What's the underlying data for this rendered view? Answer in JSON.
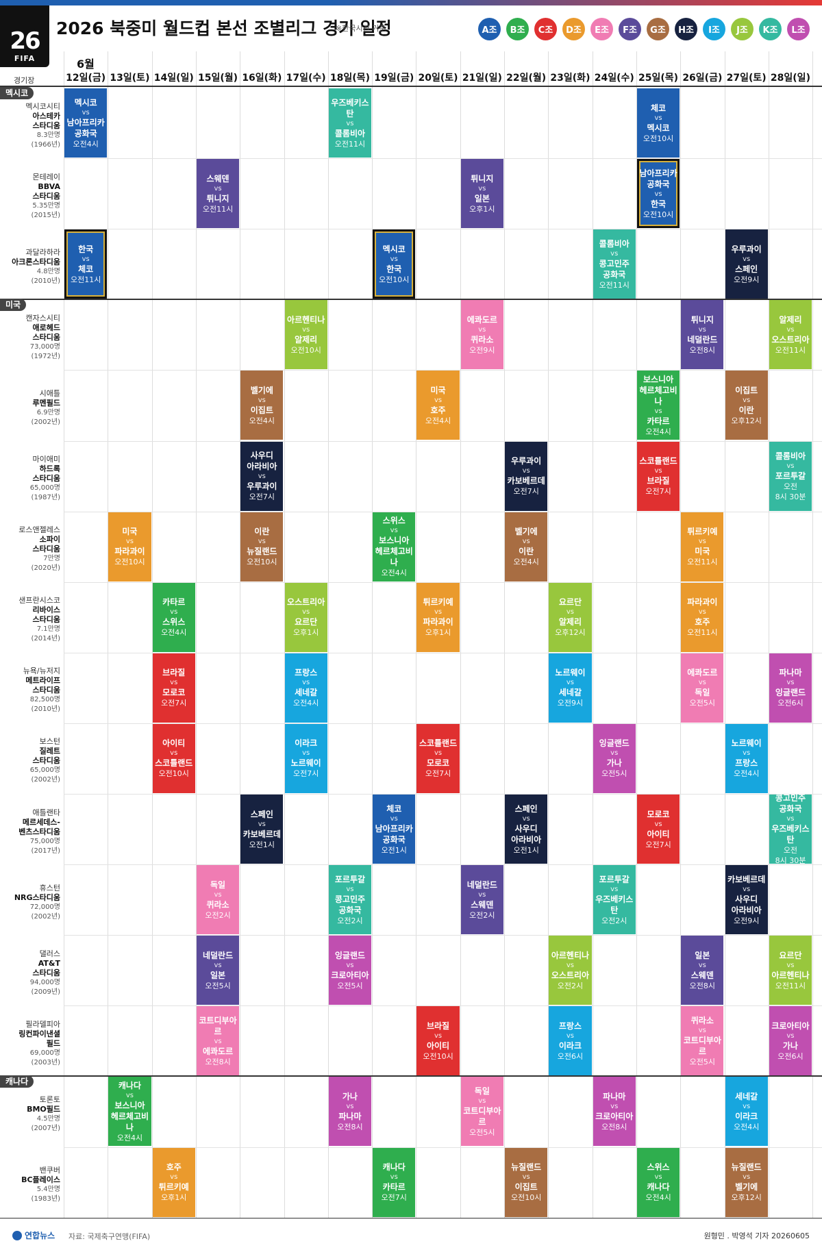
{
  "header": {
    "logo_year": "26",
    "logo_text": "FIFA",
    "title": "2026 북중미 월드컵 본선 조별리그 경기 일정",
    "subtitle": "※한국시간 기준"
  },
  "groups": [
    {
      "label": "A조",
      "color": "#1f5fb0"
    },
    {
      "label": "B조",
      "color": "#2fae4e"
    },
    {
      "label": "C조",
      "color": "#e03030"
    },
    {
      "label": "D조",
      "color": "#ea9a2d"
    },
    {
      "label": "E조",
      "color": "#f07cb3"
    },
    {
      "label": "F조",
      "color": "#5b4b9a"
    },
    {
      "label": "G조",
      "color": "#a86d42"
    },
    {
      "label": "H조",
      "color": "#172240"
    },
    {
      "label": "I조",
      "color": "#17a6de"
    },
    {
      "label": "J조",
      "color": "#98c73d"
    },
    {
      "label": "K조",
      "color": "#35b9a0"
    },
    {
      "label": "L조",
      "color": "#c04fb0"
    }
  ],
  "table": {
    "venue_header": "경기장",
    "month": "6월",
    "days": [
      "12일(금)",
      "13일(토)",
      "14일(일)",
      "15일(월)",
      "16일(화)",
      "17일(수)",
      "18일(목)",
      "19일(금)",
      "20일(토)",
      "21일(일)",
      "22일(월)",
      "23일(화)",
      "24일(수)",
      "25일(목)",
      "26일(금)",
      "27일(토)",
      "28일(일)"
    ]
  },
  "countries": [
    {
      "label": "멕시코",
      "first_row": 0
    },
    {
      "label": "미국",
      "first_row": 3
    },
    {
      "label": "캐나다",
      "first_row": 14
    }
  ],
  "venues": [
    {
      "city": "멕시코시티",
      "stadium": [
        "아스테카",
        "스타디움"
      ],
      "capacity": "8.3만명",
      "year": "(1966년)"
    },
    {
      "city": "몬테레이",
      "stadium": [
        "BBVA",
        "스타디움"
      ],
      "capacity": "5.35만명",
      "year": "(2015년)"
    },
    {
      "city": "과달라하라",
      "stadium": [
        "아크론스타디움"
      ],
      "capacity": "4.8만명",
      "year": "(2010년)"
    },
    {
      "city": "캔자스시티",
      "stadium": [
        "애로헤드",
        "스타디움"
      ],
      "capacity": "73,000명",
      "year": "(1972년)"
    },
    {
      "city": "시애틀",
      "stadium": [
        "루멘필드"
      ],
      "capacity": "6.9만명",
      "year": "(2002년)"
    },
    {
      "city": "마이애미",
      "stadium": [
        "하드록",
        "스타디움"
      ],
      "capacity": "65,000명",
      "year": "(1987년)"
    },
    {
      "city": "로스앤젤레스",
      "stadium": [
        "소파이",
        "스타디움"
      ],
      "capacity": "7만명",
      "year": "(2020년)"
    },
    {
      "city": "샌프란시스코",
      "stadium": [
        "리바이스",
        "스타디움"
      ],
      "capacity": "7.1만명",
      "year": "(2014년)"
    },
    {
      "city": "뉴욕/뉴저지",
      "stadium": [
        "메트라이프",
        "스타디움"
      ],
      "capacity": "82,500명",
      "year": "(2010년)"
    },
    {
      "city": "보스턴",
      "stadium": [
        "질레트",
        "스타디움"
      ],
      "capacity": "65,000명",
      "year": "(2002년)"
    },
    {
      "city": "애틀랜타",
      "stadium": [
        "메르세데스-",
        "벤츠스타디움"
      ],
      "capacity": "75,000명",
      "year": "(2017년)"
    },
    {
      "city": "휴스턴",
      "stadium": [
        "NRG스타디움"
      ],
      "capacity": "72,000명",
      "year": "(2002년)"
    },
    {
      "city": "댈러스",
      "stadium": [
        "AT&T",
        "스타디움"
      ],
      "capacity": "94,000명",
      "year": "(2009년)"
    },
    {
      "city": "필라델피아",
      "stadium": [
        "링컨파이낸셜",
        "필드"
      ],
      "capacity": "69,000명",
      "year": "(2003년)"
    },
    {
      "city": "토론토",
      "stadium": [
        "BMO필드"
      ],
      "capacity": "4.5만명",
      "year": "(2007년)"
    },
    {
      "city": "밴쿠버",
      "stadium": [
        "BC플레이스"
      ],
      "capacity": "5.4만명",
      "year": "(1983년)"
    }
  ],
  "vs_label": "vs",
  "matches": [
    {
      "row": 0,
      "day": 0,
      "g": 0,
      "t1": [
        "멕시코"
      ],
      "t2": [
        "남아프리카",
        "공화국"
      ],
      "time": [
        "오전4시"
      ]
    },
    {
      "row": 0,
      "day": 6,
      "g": 10,
      "t1": [
        "우즈베키스탄"
      ],
      "t2": [
        "콜롬비아"
      ],
      "time": [
        "오전11시"
      ]
    },
    {
      "row": 0,
      "day": 13,
      "g": 0,
      "t1": [
        "체코"
      ],
      "t2": [
        "멕시코"
      ],
      "time": [
        "오전10시"
      ]
    },
    {
      "row": 1,
      "day": 3,
      "g": 5,
      "t1": [
        "스웨덴"
      ],
      "t2": [
        "튀니지"
      ],
      "time": [
        "오전11시"
      ]
    },
    {
      "row": 1,
      "day": 9,
      "g": 5,
      "t1": [
        "튀니지"
      ],
      "t2": [
        "일본"
      ],
      "time": [
        "오후1시"
      ]
    },
    {
      "row": 1,
      "day": 13,
      "g": 0,
      "t1": [
        "남아프리카",
        "공화국"
      ],
      "t2": [
        "한국"
      ],
      "time": [
        "오전10시"
      ],
      "korea": true
    },
    {
      "row": 2,
      "day": 0,
      "g": 0,
      "t1": [
        "한국"
      ],
      "t2": [
        "체코"
      ],
      "time": [
        "오전11시"
      ],
      "korea": true
    },
    {
      "row": 2,
      "day": 7,
      "g": 0,
      "t1": [
        "멕시코"
      ],
      "t2": [
        "한국"
      ],
      "time": [
        "오전10시"
      ],
      "korea": true
    },
    {
      "row": 2,
      "day": 12,
      "g": 10,
      "t1": [
        "콜롬비아"
      ],
      "t2": [
        "콩고민주",
        "공화국"
      ],
      "time": [
        "오전11시"
      ]
    },
    {
      "row": 2,
      "day": 15,
      "g": 7,
      "t1": [
        "우루과이"
      ],
      "t2": [
        "스페인"
      ],
      "time": [
        "오전9시"
      ]
    },
    {
      "row": 3,
      "day": 5,
      "g": 9,
      "t1": [
        "아르헨티나"
      ],
      "t2": [
        "알제리"
      ],
      "time": [
        "오전10시"
      ]
    },
    {
      "row": 3,
      "day": 9,
      "g": 4,
      "t1": [
        "에콰도르"
      ],
      "t2": [
        "퀴라소"
      ],
      "time": [
        "오전9시"
      ]
    },
    {
      "row": 3,
      "day": 14,
      "g": 5,
      "t1": [
        "튀니지"
      ],
      "t2": [
        "네덜란드"
      ],
      "time": [
        "오전8시"
      ]
    },
    {
      "row": 3,
      "day": 16,
      "g": 9,
      "t1": [
        "알제리"
      ],
      "t2": [
        "오스트리아"
      ],
      "time": [
        "오전11시"
      ]
    },
    {
      "row": 4,
      "day": 4,
      "g": 6,
      "t1": [
        "벨기에"
      ],
      "t2": [
        "이집트"
      ],
      "time": [
        "오전4시"
      ]
    },
    {
      "row": 4,
      "day": 8,
      "g": 3,
      "t1": [
        "미국"
      ],
      "t2": [
        "호주"
      ],
      "time": [
        "오전4시"
      ]
    },
    {
      "row": 4,
      "day": 13,
      "g": 1,
      "t1": [
        "보스니아",
        "헤르체고비나"
      ],
      "t2": [
        "카타르"
      ],
      "time": [
        "오전4시"
      ]
    },
    {
      "row": 4,
      "day": 15,
      "g": 6,
      "t1": [
        "이집트"
      ],
      "t2": [
        "이란"
      ],
      "time": [
        "오후12시"
      ]
    },
    {
      "row": 5,
      "day": 4,
      "g": 7,
      "t1": [
        "사우디",
        "아라비아"
      ],
      "t2": [
        "우루과이"
      ],
      "time": [
        "오전7시"
      ]
    },
    {
      "row": 5,
      "day": 10,
      "g": 7,
      "t1": [
        "우루과이"
      ],
      "t2": [
        "카보베르데"
      ],
      "time": [
        "오전7시"
      ]
    },
    {
      "row": 5,
      "day": 13,
      "g": 2,
      "t1": [
        "스코틀랜드"
      ],
      "t2": [
        "브라질"
      ],
      "time": [
        "오전7시"
      ]
    },
    {
      "row": 5,
      "day": 16,
      "g": 10,
      "t1": [
        "콜롬비아"
      ],
      "t2": [
        "포르투갈"
      ],
      "time": [
        "오전",
        "8시 30분"
      ]
    },
    {
      "row": 6,
      "day": 1,
      "g": 3,
      "t1": [
        "미국"
      ],
      "t2": [
        "파라과이"
      ],
      "time": [
        "오전10시"
      ]
    },
    {
      "row": 6,
      "day": 4,
      "g": 6,
      "t1": [
        "이란"
      ],
      "t2": [
        "뉴질랜드"
      ],
      "time": [
        "오전10시"
      ]
    },
    {
      "row": 6,
      "day": 7,
      "g": 1,
      "t1": [
        "스위스"
      ],
      "t2": [
        "보스니아",
        "헤르체고비나"
      ],
      "time": [
        "오전4시"
      ]
    },
    {
      "row": 6,
      "day": 10,
      "g": 6,
      "t1": [
        "벨기에"
      ],
      "t2": [
        "이란"
      ],
      "time": [
        "오전4시"
      ]
    },
    {
      "row": 6,
      "day": 14,
      "g": 3,
      "t1": [
        "튀르키예"
      ],
      "t2": [
        "미국"
      ],
      "time": [
        "오전11시"
      ]
    },
    {
      "row": 7,
      "day": 2,
      "g": 1,
      "t1": [
        "카타르"
      ],
      "t2": [
        "스위스"
      ],
      "time": [
        "오전4시"
      ]
    },
    {
      "row": 7,
      "day": 5,
      "g": 9,
      "t1": [
        "오스트리아"
      ],
      "t2": [
        "요르단"
      ],
      "time": [
        "오후1시"
      ]
    },
    {
      "row": 7,
      "day": 8,
      "g": 3,
      "t1": [
        "튀르키예"
      ],
      "t2": [
        "파라과이"
      ],
      "time": [
        "오후1시"
      ]
    },
    {
      "row": 7,
      "day": 11,
      "g": 9,
      "t1": [
        "요르단"
      ],
      "t2": [
        "알제리"
      ],
      "time": [
        "오후12시"
      ]
    },
    {
      "row": 7,
      "day": 14,
      "g": 3,
      "t1": [
        "파라과이"
      ],
      "t2": [
        "호주"
      ],
      "time": [
        "오전11시"
      ]
    },
    {
      "row": 8,
      "day": 2,
      "g": 2,
      "t1": [
        "브라질"
      ],
      "t2": [
        "모로코"
      ],
      "time": [
        "오전7시"
      ]
    },
    {
      "row": 8,
      "day": 5,
      "g": 8,
      "t1": [
        "프랑스"
      ],
      "t2": [
        "세네갈"
      ],
      "time": [
        "오전4시"
      ]
    },
    {
      "row": 8,
      "day": 11,
      "g": 8,
      "t1": [
        "노르웨이"
      ],
      "t2": [
        "세네갈"
      ],
      "time": [
        "오전9시"
      ]
    },
    {
      "row": 8,
      "day": 14,
      "g": 4,
      "t1": [
        "에콰도르"
      ],
      "t2": [
        "독일"
      ],
      "time": [
        "오전5시"
      ]
    },
    {
      "row": 8,
      "day": 16,
      "g": 11,
      "t1": [
        "파나마"
      ],
      "t2": [
        "잉글랜드"
      ],
      "time": [
        "오전6시"
      ]
    },
    {
      "row": 9,
      "day": 2,
      "g": 2,
      "t1": [
        "아이티"
      ],
      "t2": [
        "스코틀랜드"
      ],
      "time": [
        "오전10시"
      ]
    },
    {
      "row": 9,
      "day": 5,
      "g": 8,
      "t1": [
        "이라크"
      ],
      "t2": [
        "노르웨이"
      ],
      "time": [
        "오전7시"
      ]
    },
    {
      "row": 9,
      "day": 8,
      "g": 2,
      "t1": [
        "스코틀랜드"
      ],
      "t2": [
        "모로코"
      ],
      "time": [
        "오전7시"
      ]
    },
    {
      "row": 9,
      "day": 12,
      "g": 11,
      "t1": [
        "잉글랜드"
      ],
      "t2": [
        "가나"
      ],
      "time": [
        "오전5시"
      ]
    },
    {
      "row": 9,
      "day": 15,
      "g": 8,
      "t1": [
        "노르웨이"
      ],
      "t2": [
        "프랑스"
      ],
      "time": [
        "오전4시"
      ]
    },
    {
      "row": 10,
      "day": 4,
      "g": 7,
      "t1": [
        "스페인"
      ],
      "t2": [
        "카보베르데"
      ],
      "time": [
        "오전1시"
      ]
    },
    {
      "row": 10,
      "day": 7,
      "g": 0,
      "t1": [
        "체코"
      ],
      "t2": [
        "남아프리카",
        "공화국"
      ],
      "time": [
        "오전1시"
      ]
    },
    {
      "row": 10,
      "day": 10,
      "g": 7,
      "t1": [
        "스페인"
      ],
      "t2": [
        "사우디",
        "아라비아"
      ],
      "time": [
        "오전1시"
      ]
    },
    {
      "row": 10,
      "day": 13,
      "g": 2,
      "t1": [
        "모로코"
      ],
      "t2": [
        "아이티"
      ],
      "time": [
        "오전7시"
      ]
    },
    {
      "row": 10,
      "day": 16,
      "g": 10,
      "t1": [
        "콩고민주",
        "공화국"
      ],
      "t2": [
        "우즈베키스탄"
      ],
      "time": [
        "오전",
        "8시 30분"
      ]
    },
    {
      "row": 11,
      "day": 3,
      "g": 4,
      "t1": [
        "독일"
      ],
      "t2": [
        "퀴라소"
      ],
      "time": [
        "오전2시"
      ]
    },
    {
      "row": 11,
      "day": 6,
      "g": 10,
      "t1": [
        "포르투갈"
      ],
      "t2": [
        "콩고민주",
        "공화국"
      ],
      "time": [
        "오전2시"
      ]
    },
    {
      "row": 11,
      "day": 9,
      "g": 5,
      "t1": [
        "네덜란드"
      ],
      "t2": [
        "스웨덴"
      ],
      "time": [
        "오전2시"
      ]
    },
    {
      "row": 11,
      "day": 12,
      "g": 10,
      "t1": [
        "포르투갈"
      ],
      "t2": [
        "우즈베키스탄"
      ],
      "time": [
        "오전2시"
      ]
    },
    {
      "row": 11,
      "day": 15,
      "g": 7,
      "t1": [
        "카보베르데"
      ],
      "t2": [
        "사우디",
        "아라비아"
      ],
      "time": [
        "오전9시"
      ]
    },
    {
      "row": 12,
      "day": 3,
      "g": 5,
      "t1": [
        "네덜란드"
      ],
      "t2": [
        "일본"
      ],
      "time": [
        "오전5시"
      ]
    },
    {
      "row": 12,
      "day": 6,
      "g": 11,
      "t1": [
        "잉글랜드"
      ],
      "t2": [
        "크로아티아"
      ],
      "time": [
        "오전5시"
      ]
    },
    {
      "row": 12,
      "day": 11,
      "g": 9,
      "t1": [
        "아르헨티나"
      ],
      "t2": [
        "오스트리아"
      ],
      "time": [
        "오전2시"
      ]
    },
    {
      "row": 12,
      "day": 14,
      "g": 5,
      "t1": [
        "일본"
      ],
      "t2": [
        "스웨덴"
      ],
      "time": [
        "오전8시"
      ]
    },
    {
      "row": 12,
      "day": 16,
      "g": 9,
      "t1": [
        "요르단"
      ],
      "t2": [
        "아르헨티나"
      ],
      "time": [
        "오전11시"
      ]
    },
    {
      "row": 13,
      "day": 3,
      "g": 4,
      "t1": [
        "코트디부아르"
      ],
      "t2": [
        "에콰도르"
      ],
      "time": [
        "오전8시"
      ]
    },
    {
      "row": 13,
      "day": 8,
      "g": 2,
      "t1": [
        "브라질"
      ],
      "t2": [
        "아이티"
      ],
      "time": [
        "오전10시"
      ]
    },
    {
      "row": 13,
      "day": 11,
      "g": 8,
      "t1": [
        "프랑스"
      ],
      "t2": [
        "이라크"
      ],
      "time": [
        "오전6시"
      ]
    },
    {
      "row": 13,
      "day": 14,
      "g": 4,
      "t1": [
        "퀴라소"
      ],
      "t2": [
        "코트디부아르"
      ],
      "time": [
        "오전5시"
      ]
    },
    {
      "row": 13,
      "day": 16,
      "g": 11,
      "t1": [
        "크로아티아"
      ],
      "t2": [
        "가나"
      ],
      "time": [
        "오전6시"
      ]
    },
    {
      "row": 14,
      "day": 1,
      "g": 1,
      "t1": [
        "캐나다"
      ],
      "t2": [
        "보스니아",
        "헤르체고비나"
      ],
      "time": [
        "오전4시"
      ]
    },
    {
      "row": 14,
      "day": 6,
      "g": 11,
      "t1": [
        "가나"
      ],
      "t2": [
        "파나마"
      ],
      "time": [
        "오전8시"
      ]
    },
    {
      "row": 14,
      "day": 9,
      "g": 4,
      "t1": [
        "독일"
      ],
      "t2": [
        "코트디부아르"
      ],
      "time": [
        "오전5시"
      ]
    },
    {
      "row": 14,
      "day": 12,
      "g": 11,
      "t1": [
        "파나마"
      ],
      "t2": [
        "크로아티아"
      ],
      "time": [
        "오전8시"
      ]
    },
    {
      "row": 14,
      "day": 15,
      "g": 8,
      "t1": [
        "세네갈"
      ],
      "t2": [
        "이라크"
      ],
      "time": [
        "오전4시"
      ]
    },
    {
      "row": 15,
      "day": 2,
      "g": 3,
      "t1": [
        "호주"
      ],
      "t2": [
        "튀르키예"
      ],
      "time": [
        "오후1시"
      ]
    },
    {
      "row": 15,
      "day": 7,
      "g": 1,
      "t1": [
        "캐나다"
      ],
      "t2": [
        "카타르"
      ],
      "time": [
        "오전7시"
      ]
    },
    {
      "row": 15,
      "day": 10,
      "g": 6,
      "t1": [
        "뉴질랜드"
      ],
      "t2": [
        "이집트"
      ],
      "time": [
        "오전10시"
      ]
    },
    {
      "row": 15,
      "day": 13,
      "g": 1,
      "t1": [
        "스위스"
      ],
      "t2": [
        "캐나다"
      ],
      "time": [
        "오전4시"
      ]
    },
    {
      "row": 15,
      "day": 15,
      "g": 6,
      "t1": [
        "뉴질랜드"
      ],
      "t2": [
        "벨기에"
      ],
      "time": [
        "오후12시"
      ]
    }
  ],
  "footer": {
    "agency": "연합뉴스",
    "source": "자료: 국제축구연맹(FIFA)",
    "credit": "원형민 . 박영석 기자 20260605"
  }
}
